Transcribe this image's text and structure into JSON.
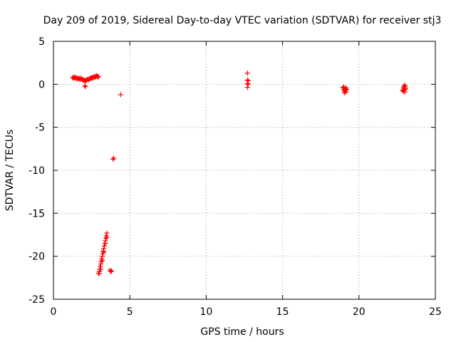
{
  "chart_data": {
    "type": "scatter",
    "title": "Day 209 of 2019, Sidereal Day-to-day VTEC variation (SDTVAR) for receiver stj3",
    "xlabel": "GPS time / hours",
    "ylabel": "SDTVAR / TECUs",
    "xlim": [
      0,
      25
    ],
    "ylim": [
      -25,
      5
    ],
    "xticks": [
      0,
      5,
      10,
      15,
      20,
      25
    ],
    "yticks": [
      5,
      0,
      -5,
      -10,
      -15,
      -20,
      -25
    ],
    "grid": true,
    "marker": "+",
    "color": "#ff0000",
    "series": [
      {
        "name": "SDTVAR",
        "points": [
          [
            1.25,
            0.75
          ],
          [
            1.3,
            0.8
          ],
          [
            1.35,
            0.7
          ],
          [
            1.4,
            0.85
          ],
          [
            1.45,
            0.75
          ],
          [
            1.5,
            0.7
          ],
          [
            1.55,
            0.65
          ],
          [
            1.6,
            0.75
          ],
          [
            1.65,
            0.6
          ],
          [
            1.7,
            0.7
          ],
          [
            1.75,
            0.55
          ],
          [
            1.8,
            0.7
          ],
          [
            1.85,
            0.6
          ],
          [
            1.9,
            0.55
          ],
          [
            1.95,
            0.5
          ],
          [
            2.0,
            0.45
          ],
          [
            2.05,
            0.5
          ],
          [
            2.1,
            0.4
          ],
          [
            2.15,
            0.45
          ],
          [
            2.2,
            0.55
          ],
          [
            2.25,
            0.6
          ],
          [
            2.3,
            0.5
          ],
          [
            2.35,
            0.65
          ],
          [
            2.4,
            0.7
          ],
          [
            2.45,
            0.7
          ],
          [
            2.5,
            0.75
          ],
          [
            2.55,
            0.8
          ],
          [
            2.6,
            0.75
          ],
          [
            2.65,
            0.85
          ],
          [
            2.7,
            0.9
          ],
          [
            2.75,
            0.85
          ],
          [
            2.8,
            0.95
          ],
          [
            2.85,
            1.0
          ],
          [
            2.9,
            0.9
          ],
          [
            2.95,
            0.85
          ],
          [
            2.05,
            -0.2
          ],
          [
            2.1,
            -0.25
          ],
          [
            4.4,
            -1.2
          ],
          [
            3.9,
            -8.7
          ],
          [
            3.95,
            -8.6
          ],
          [
            2.95,
            -22.0
          ],
          [
            3.0,
            -21.8
          ],
          [
            3.03,
            -21.5
          ],
          [
            3.06,
            -21.2
          ],
          [
            3.1,
            -20.9
          ],
          [
            3.13,
            -20.6
          ],
          [
            3.16,
            -20.3
          ],
          [
            3.2,
            -20.0
          ],
          [
            3.23,
            -19.7
          ],
          [
            3.26,
            -19.4
          ],
          [
            3.3,
            -19.1
          ],
          [
            3.33,
            -18.8
          ],
          [
            3.36,
            -18.5
          ],
          [
            3.4,
            -18.2
          ],
          [
            3.43,
            -17.9
          ],
          [
            3.46,
            -17.6
          ],
          [
            3.5,
            -17.3
          ],
          [
            3.0,
            -22.0
          ],
          [
            3.1,
            -21.5
          ],
          [
            3.2,
            -20.5
          ],
          [
            3.3,
            -19.5
          ],
          [
            3.4,
            -18.5
          ],
          [
            3.5,
            -17.8
          ],
          [
            3.7,
            -21.6
          ],
          [
            3.75,
            -21.8
          ],
          [
            3.8,
            -21.7
          ],
          [
            12.7,
            1.3
          ],
          [
            12.7,
            0.5
          ],
          [
            12.75,
            0.4
          ],
          [
            12.7,
            0.1
          ],
          [
            12.75,
            0.0
          ],
          [
            12.7,
            -0.35
          ],
          [
            18.95,
            -0.4
          ],
          [
            19.0,
            -0.6
          ],
          [
            19.05,
            -0.8
          ],
          [
            19.1,
            -0.5
          ],
          [
            19.15,
            -0.9
          ],
          [
            19.0,
            -0.3
          ],
          [
            19.1,
            -0.7
          ],
          [
            19.2,
            -0.6
          ],
          [
            19.05,
            -1.0
          ],
          [
            19.15,
            -0.4
          ],
          [
            22.85,
            -0.7
          ],
          [
            22.9,
            -0.4
          ],
          [
            22.95,
            -0.2
          ],
          [
            23.0,
            -0.6
          ],
          [
            23.05,
            -0.3
          ],
          [
            22.9,
            -0.8
          ],
          [
            23.0,
            -0.1
          ],
          [
            23.05,
            -0.5
          ],
          [
            22.95,
            -0.6
          ],
          [
            23.0,
            -0.9
          ]
        ]
      }
    ]
  }
}
